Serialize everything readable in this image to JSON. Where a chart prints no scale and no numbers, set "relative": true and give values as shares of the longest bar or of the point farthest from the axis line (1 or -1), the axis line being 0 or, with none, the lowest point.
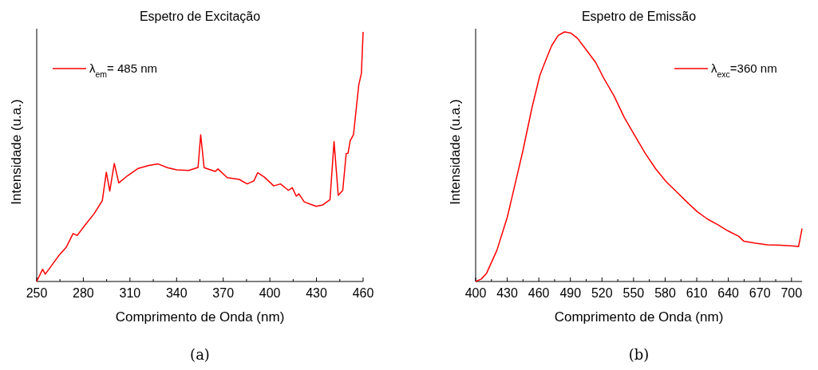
{
  "chart_data": [
    {
      "type": "line",
      "title": "Espetro de Excitação",
      "xlabel": "Comprimento de Onda (nm)",
      "ylabel": "Intensidade (u.a.)",
      "relative": true,
      "legend": "top left",
      "xlim": [
        250,
        460
      ],
      "xticks": [
        250,
        {
          "value": 265,
          "label": null
        },
        280,
        {
          "value": 295,
          "label": null
        },
        310,
        {
          "value": 325,
          "label": null
        },
        340,
        {
          "value": 355,
          "label": null
        },
        370,
        {
          "value": 385,
          "label": null
        },
        400,
        {
          "value": 415,
          "label": null
        },
        430,
        {
          "value": 445,
          "label": null
        },
        460
      ],
      "annotations": [
        "(a)"
      ],
      "series": [
        {
          "name": "λ$_{em}$= 485 nm",
          "color": "#ff0000",
          "x": [
            250,
            253.8,
            255.5,
            264,
            269,
            273.4,
            276,
            281,
            287,
            292.2,
            294.8,
            297,
            299.9,
            302.8,
            308.5,
            315.3,
            322.1,
            328.1,
            334.1,
            340.1,
            347.8,
            353.8,
            355.5,
            357.7,
            364.9,
            366.6,
            372.6,
            380.3,
            385.4,
            389.7,
            392.2,
            396.5,
            402.5,
            406.8,
            412,
            414.4,
            417,
            418.7,
            422.1,
            429.8,
            434.1,
            438.7,
            441.3,
            444,
            446.9,
            449.1,
            450.3,
            451.7,
            453.8,
            457.2,
            458.9,
            460
          ],
          "values": [
            0,
            0.049,
            0.029,
            0.102,
            0.137,
            0.192,
            0.184,
            0.225,
            0.272,
            0.324,
            0.438,
            0.362,
            0.473,
            0.395,
            0.424,
            0.453,
            0.465,
            0.471,
            0.456,
            0.447,
            0.445,
            0.457,
            0.588,
            0.456,
            0.441,
            0.451,
            0.416,
            0.409,
            0.391,
            0.403,
            0.436,
            0.418,
            0.383,
            0.391,
            0.365,
            0.376,
            0.342,
            0.351,
            0.319,
            0.301,
            0.307,
            0.328,
            0.561,
            0.345,
            0.365,
            0.512,
            0.514,
            0.564,
            0.588,
            0.787,
            0.834,
            1
          ]
        }
      ]
    },
    {
      "type": "line",
      "title": "Espetro de Emissão",
      "xlabel": "Comprimento de Onda (nm)",
      "ylabel": "Intensidade (u.a.)",
      "relative": true,
      "legend": "top right",
      "xlim": [
        400,
        710
      ],
      "xticks": [
        400,
        {
          "value": 415,
          "label": null
        },
        430,
        {
          "value": 445,
          "label": null
        },
        460,
        {
          "value": 475,
          "label": null
        },
        490,
        {
          "value": 505,
          "label": null
        },
        520,
        {
          "value": 535,
          "label": null
        },
        550,
        {
          "value": 565,
          "label": null
        },
        580,
        {
          "value": 595,
          "label": null
        },
        610,
        {
          "value": 625,
          "label": null
        },
        640,
        {
          "value": 655,
          "label": null
        },
        670,
        {
          "value": 685,
          "label": null
        },
        700
      ],
      "annotations": [
        "(b)"
      ],
      "series": [
        {
          "name": "λ$_{exc}$=360 nm",
          "color": "#ff0000",
          "x": [
            400,
            405.4,
            410.4,
            420.2,
            430.1,
            437.5,
            444.9,
            453.6,
            461,
            467.2,
            472.1,
            478.3,
            484.4,
            490.6,
            496.8,
            504.2,
            514.1,
            521.5,
            531.4,
            541.2,
            551.1,
            561,
            570.9,
            580.7,
            590.6,
            600.5,
            610.4,
            620.2,
            630.1,
            640,
            649.9,
            654.8,
            664.7,
            677,
            689.4,
            701.7,
            706.7,
            707.9,
            710
          ],
          "values": [
            0,
            0.01,
            0.033,
            0.125,
            0.258,
            0.391,
            0.524,
            0.698,
            0.826,
            0.893,
            0.944,
            0.985,
            1,
            0.995,
            0.974,
            0.933,
            0.877,
            0.816,
            0.744,
            0.657,
            0.585,
            0.514,
            0.452,
            0.401,
            0.36,
            0.319,
            0.28,
            0.25,
            0.227,
            0.202,
            0.181,
            0.161,
            0.154,
            0.147,
            0.145,
            0.142,
            0.14,
            0.166,
            0.212
          ]
        }
      ]
    }
  ]
}
